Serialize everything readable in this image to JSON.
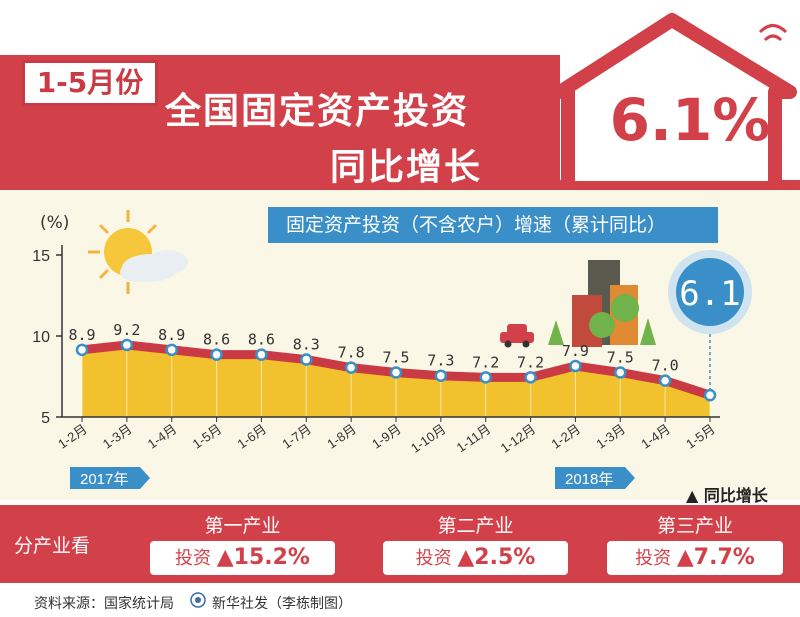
{
  "header": {
    "period_badge": "1-5月份",
    "title_line1": "全国固定资产投资",
    "title_line2": "同比增长",
    "headline_value": "6.1%"
  },
  "chart_data": {
    "type": "area",
    "subtitle": "固定资产投资（不含农户）增速（累计同比）",
    "y_unit": "(%)",
    "ylim": [
      5,
      15
    ],
    "y_ticks": [
      5,
      10,
      15
    ],
    "categories": [
      "1-2月",
      "1-3月",
      "1-4月",
      "1-5月",
      "1-6月",
      "1-7月",
      "1-8月",
      "1-9月",
      "1-10月",
      "1-11月",
      "1-12月",
      "1-2月",
      "1-3月",
      "1-4月",
      "1-5月"
    ],
    "values": [
      8.9,
      9.2,
      8.9,
      8.6,
      8.6,
      8.3,
      7.8,
      7.5,
      7.3,
      7.2,
      7.2,
      7.9,
      7.5,
      7.0,
      6.1
    ],
    "data_labels": [
      "8.9",
      "9.2",
      "8.9",
      "8.6",
      "8.6",
      "8.3",
      "7.8",
      "7.5",
      "7.3",
      "7.2",
      "7.2",
      "7.9",
      "7.5",
      "7.0",
      "6.1"
    ],
    "year_labels": [
      "2017年",
      "2018年"
    ],
    "legend": "▲ 同比增长",
    "area_color": "#f2c12e",
    "line_color": "#c93a44",
    "grid": false
  },
  "sectors": {
    "heading": "分产业看",
    "items": [
      {
        "name": "第一产业",
        "label": "投资",
        "value": "▲15.2%"
      },
      {
        "name": "第二产业",
        "label": "投资",
        "value": "▲2.5%"
      },
      {
        "name": "第三产业",
        "label": "投资",
        "value": "▲7.7%"
      }
    ]
  },
  "footer": {
    "source": "资料来源：国家统计局",
    "agency": "新华社发（李栋制图）"
  },
  "colors": {
    "brand_red": "#d2404a",
    "accent_blue": "#3a8fc9",
    "panel_bg": "#fbf7e6"
  }
}
